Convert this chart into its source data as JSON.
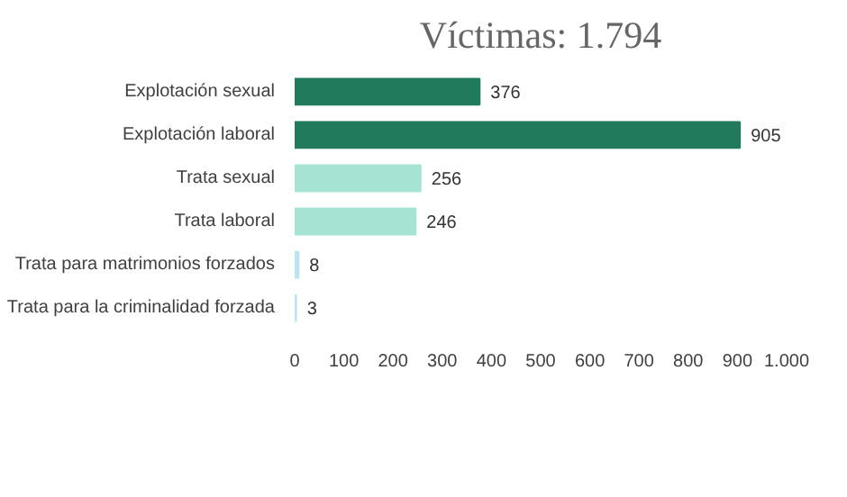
{
  "chart_data": {
    "type": "bar",
    "orientation": "horizontal",
    "title": "Víctimas: 1.794",
    "categories": [
      "Explotación sexual",
      "Explotación laboral",
      "Trata sexual",
      "Trata laboral",
      "Trata para matrimonios forzados",
      "Trata para la criminalidad forzada"
    ],
    "values": [
      376,
      905,
      256,
      246,
      8,
      3
    ],
    "colors": [
      "#217a5c",
      "#217a5c",
      "#a6e3d2",
      "#a6e3d2",
      "#bfe3f0",
      "#bfe3f0"
    ],
    "xlim": [
      0,
      1000
    ],
    "xticks": [
      0,
      100,
      200,
      300,
      400,
      500,
      600,
      700,
      800,
      {
        "value": 900,
        "label": "900"
      },
      {
        "value": 1000,
        "label": "1.000"
      }
    ],
    "data_labels": true,
    "grid": false
  }
}
